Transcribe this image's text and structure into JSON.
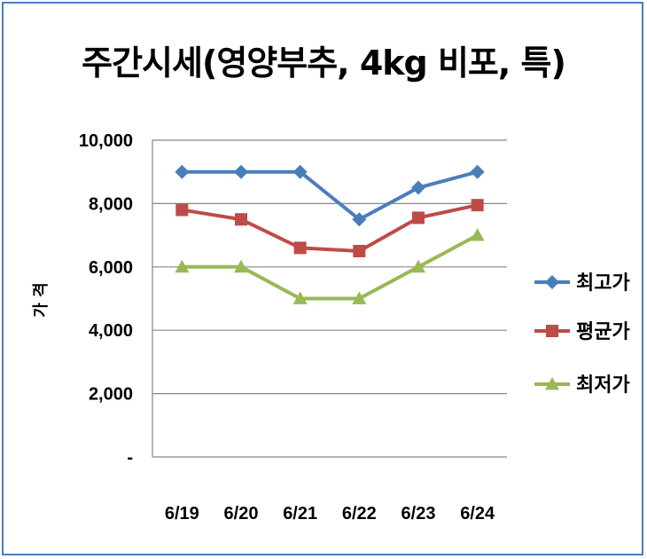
{
  "chart_data": {
    "type": "line",
    "title": "주간시세(영양부추, 4kg 비포, 특)",
    "ylabel": "가 격",
    "xlabel": "",
    "categories": [
      "6/19",
      "6/20",
      "6/21",
      "6/22",
      "6/23",
      "6/24"
    ],
    "ylim": [
      0,
      10000
    ],
    "yticks": [
      "-",
      "2,000",
      "4,000",
      "6,000",
      "8,000",
      "10,000"
    ],
    "ytick_values": [
      0,
      2000,
      4000,
      6000,
      8000,
      10000
    ],
    "grid": true,
    "legend_position": "right",
    "series": [
      {
        "name": "최고가",
        "values": [
          9000,
          9000,
          9000,
          7500,
          8500,
          9000
        ],
        "color": "#4a7ebb",
        "marker": "diamond"
      },
      {
        "name": "평균가",
        "values": [
          7800,
          7500,
          6600,
          6500,
          7550,
          7950
        ],
        "color": "#be4b48",
        "marker": "square"
      },
      {
        "name": "최저가",
        "values": [
          6000,
          6000,
          5000,
          5000,
          6000,
          7000
        ],
        "color": "#98b954",
        "marker": "triangle"
      }
    ]
  }
}
